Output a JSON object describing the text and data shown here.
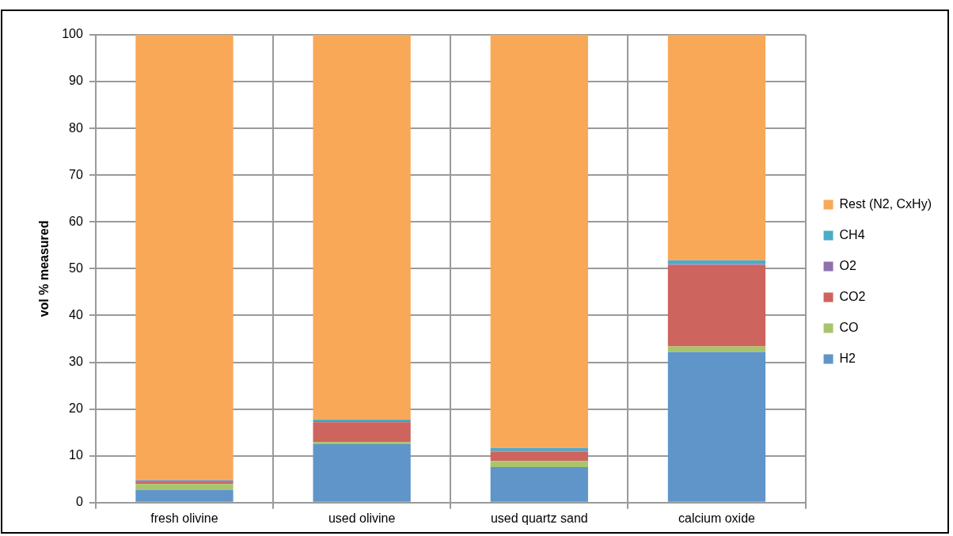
{
  "chart_data": {
    "type": "bar",
    "stacked": true,
    "ylabel": "vol % measured",
    "categories": [
      "fresh olivine",
      "used olivine",
      "used quartz sand",
      "calcium oxide"
    ],
    "series": [
      {
        "name": "H2",
        "color": "#5f95c9",
        "values": [
          2.7,
          12.5,
          7.6,
          32.2
        ]
      },
      {
        "name": "CO",
        "color": "#a9c46c",
        "values": [
          1.3,
          0.5,
          1.3,
          1.2
        ]
      },
      {
        "name": "CO2",
        "color": "#cd645e",
        "values": [
          0.4,
          4.2,
          2.0,
          17.4
        ]
      },
      {
        "name": "O2",
        "color": "#8e71ac",
        "values": [
          0.3,
          0.2,
          0.2,
          0.2
        ]
      },
      {
        "name": "CH4",
        "color": "#4bacc6",
        "values": [
          0.1,
          0.4,
          0.6,
          0.8
        ]
      },
      {
        "name": "Rest (N2, CxHy)",
        "color": "#f9a857",
        "values": [
          95.2,
          82.2,
          88.3,
          48.2
        ]
      }
    ],
    "ylim": [
      0,
      100
    ],
    "yticks": [
      0,
      10,
      20,
      30,
      40,
      50,
      60,
      70,
      80,
      90,
      100
    ],
    "grid": true,
    "legend": "right"
  }
}
